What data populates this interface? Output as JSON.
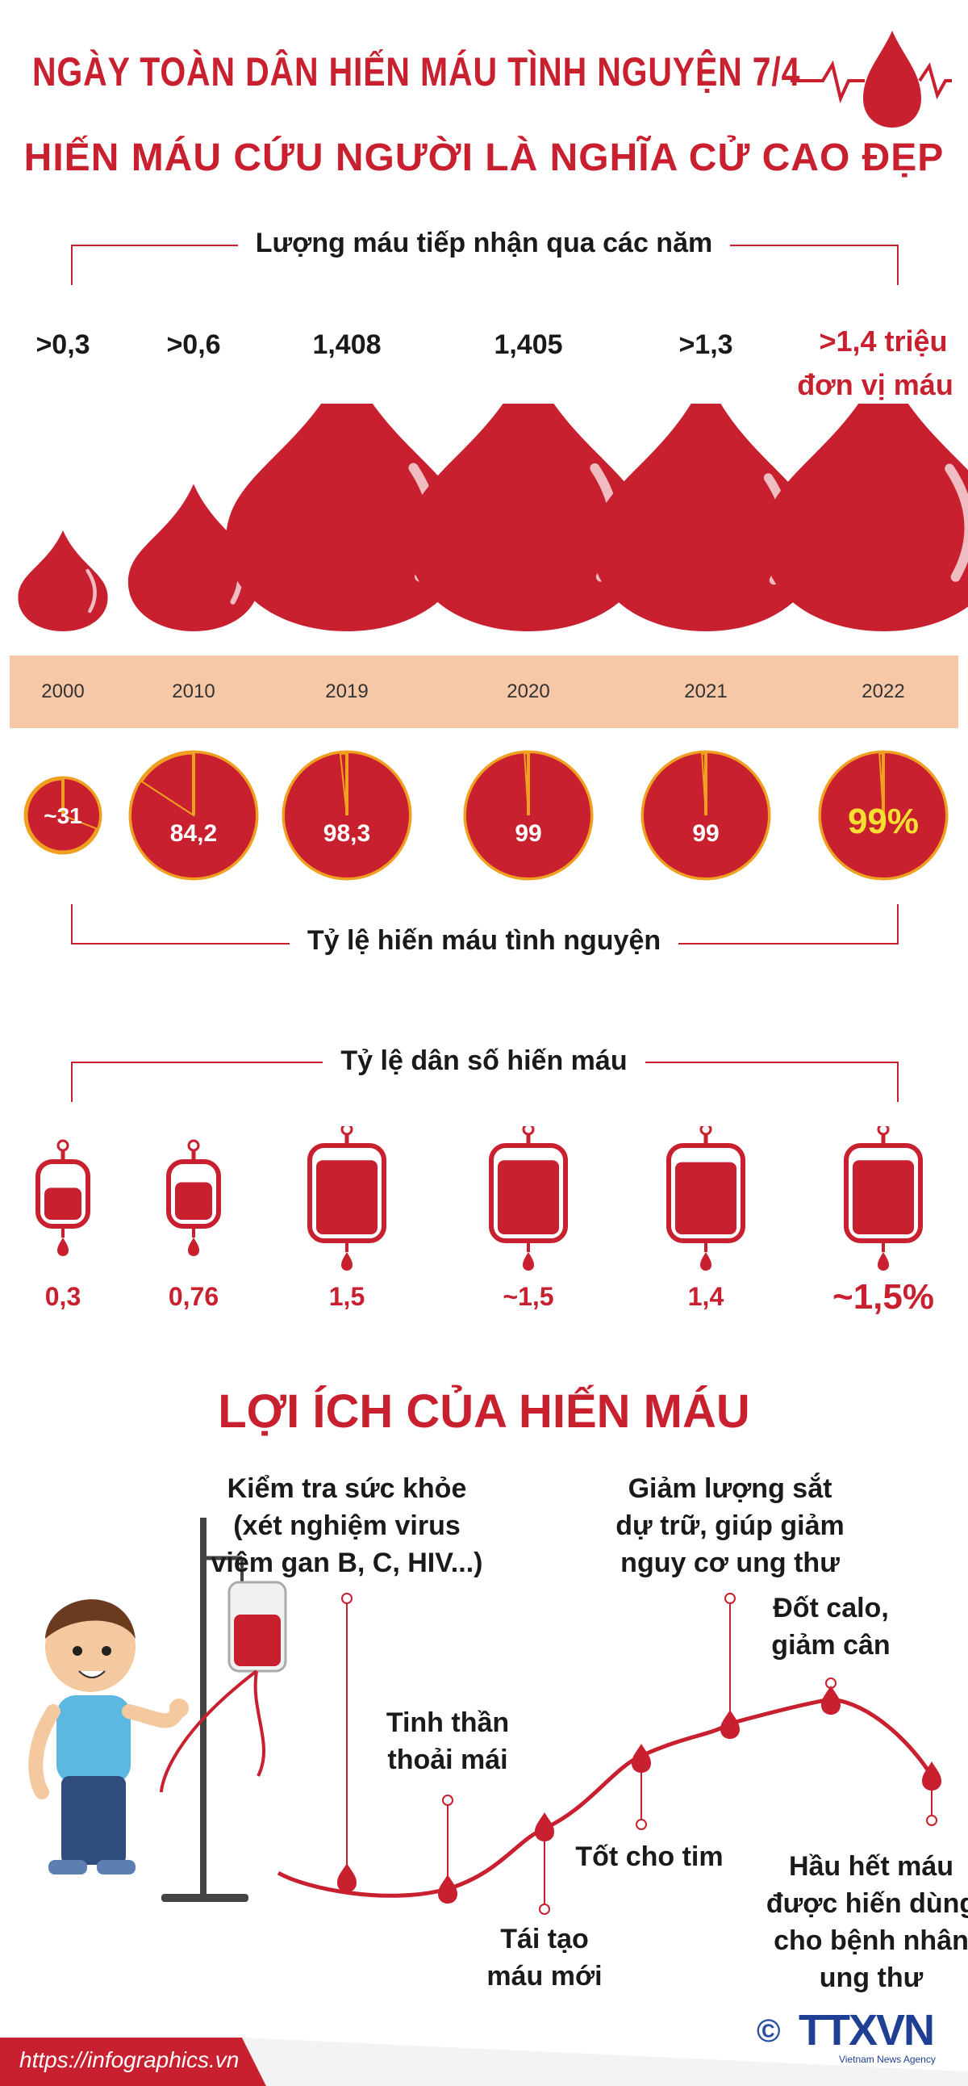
{
  "header": {
    "title": "NGÀY TOÀN DÂN HIẾN MÁU TÌNH NGUYỆN 7/4",
    "subtitle": "HIẾN MÁU CỨU NGƯỜI LÀ NGHĨA CỬ CAO ĐẸP"
  },
  "colors": {
    "accent": "#c8202f",
    "band": "#f7c8a8",
    "highlight": "#f5e032",
    "needle": "#f0a020"
  },
  "chart_data": [
    {
      "type": "bar",
      "title": "Lượng máu tiếp nhận qua các năm",
      "categories": [
        "2000",
        "2010",
        "2019",
        "2020",
        "2021",
        "2022"
      ],
      "values": [
        0.3,
        0.6,
        1.408,
        1.405,
        1.3,
        1.4
      ],
      "value_labels": [
        ">0,3",
        ">0,6",
        "1,408",
        "1,405",
        ">1,3",
        ">1,4 triệu"
      ],
      "unit_label": "đơn vị máu"
    },
    {
      "type": "pie",
      "title": "Tỷ lệ hiến máu tình nguyện",
      "categories": [
        "2000",
        "2010",
        "2019",
        "2020",
        "2021",
        "2022"
      ],
      "values": [
        31,
        84.2,
        98.3,
        99,
        99,
        99
      ],
      "value_labels": [
        "~31",
        "84,2",
        "98,3",
        "99",
        "99",
        "99%"
      ]
    },
    {
      "type": "bar",
      "title": "Tỷ lệ dân số hiến máu",
      "categories": [
        "2000",
        "2010",
        "2019",
        "2020",
        "2021",
        "2022"
      ],
      "values": [
        0.3,
        0.76,
        1.5,
        1.5,
        1.4,
        1.5
      ],
      "value_labels": [
        "0,3",
        "0,76",
        "1,5",
        "~1,5",
        "1,4",
        "~1,5%"
      ]
    }
  ],
  "benefits": {
    "title": "LỢI ÍCH CỦA HIẾN MÁU",
    "items": [
      {
        "lines": [
          "Kiểm tra sức khỏe",
          "(xét nghiệm virus",
          "viêm gan B, C, HIV...)"
        ]
      },
      {
        "lines": [
          "Tinh thần",
          "thoải mái"
        ]
      },
      {
        "lines": [
          "Tái tạo",
          "máu mới"
        ]
      },
      {
        "lines": [
          "Tốt cho tim"
        ]
      },
      {
        "lines": [
          "Giảm lượng sắt",
          "dự trữ, giúp giảm",
          "nguy cơ ung thư"
        ]
      },
      {
        "lines": [
          "Đốt calo,",
          "giảm cân"
        ]
      },
      {
        "lines": [
          "Hầu hết máu",
          "được hiến dùng",
          "cho bệnh nhân",
          "ung thư"
        ]
      }
    ]
  },
  "footer": {
    "url": "https://infographics.vn",
    "copyright": "©",
    "logo": "TTXVN",
    "logo_sub": "Vietnam News Agency"
  }
}
